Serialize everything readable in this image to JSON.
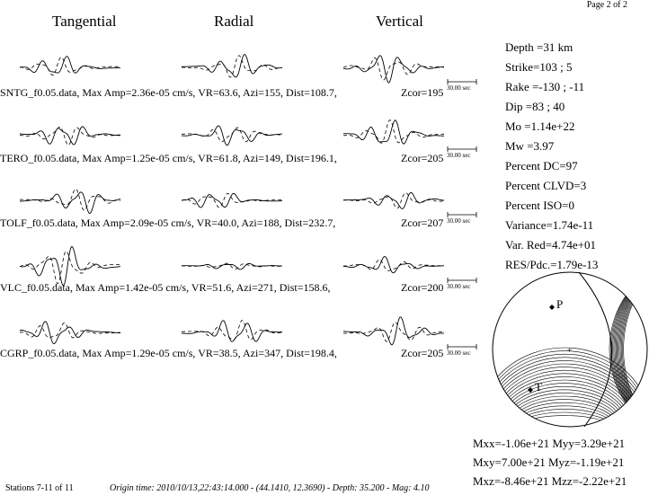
{
  "header": {
    "page_label": "Page 2 of 2",
    "columns": [
      "Tangential",
      "Radial",
      "Vertical"
    ]
  },
  "stations": [
    {
      "label": "SNTG_f0.05.data,  Max Amp=2.36e-05 cm/s,   VR=63.6, Azi=155, Dist=108.7,",
      "zcor": "Zcor=195",
      "scale": "30.00 sec"
    },
    {
      "label": "TERO_f0.05.data,  Max Amp=1.25e-05 cm/s,   VR=61.8, Azi=149, Dist=196.1,",
      "zcor": "Zcor=205",
      "scale": "30.00 sec"
    },
    {
      "label": "TOLF_f0.05.data,  Max Amp=2.09e-05 cm/s,   VR=40.0, Azi=188, Dist=232.7,",
      "zcor": "Zcor=207",
      "scale": "30.00 sec"
    },
    {
      "label": "VLC_f0.05.data,  Max Amp=1.42e-05 cm/s,    VR=51.6, Azi=271, Dist=158.6,",
      "zcor": "Zcor=200",
      "scale": "30.00 sec"
    },
    {
      "label": "CGRP_f0.05.data,  Max Amp=1.29e-05 cm/s,   VR=38.5, Azi=347, Dist=198.4,",
      "zcor": "Zcor=205",
      "scale": "30.00 sec"
    }
  ],
  "parameters": [
    "Depth =31 km",
    "Strike=103 ; 5",
    "Rake  =-130 ; -11",
    "Dip   =83 ; 40",
    "Mo    =1.14e+22",
    "Mw     =3.97",
    "Percent DC=97",
    "Percent CLVD=3",
    "Percent ISO=0",
    "Variance=1.74e-11",
    "Var. Red=4.74e+01",
    "RES/Pdc.=1.79e-13"
  ],
  "beachball": {
    "p_label": "P",
    "t_label": "T",
    "center_mark": "+"
  },
  "moment_tensor": [
    "Mxx=-1.06e+21 Myy=3.29e+21",
    "Mxy=7.00e+21 Myz=-1.19e+21",
    "Mxz=-8.46e+21 Mzz=-2.22e+21"
  ],
  "footer": {
    "stations_label": "Stations 7-11 of 11",
    "origin_text": "Origin time: 2010/10/13,22:43:14.000 - (44.1410, 12.3690) - Depth: 35.200 - Mag: 4.10"
  }
}
